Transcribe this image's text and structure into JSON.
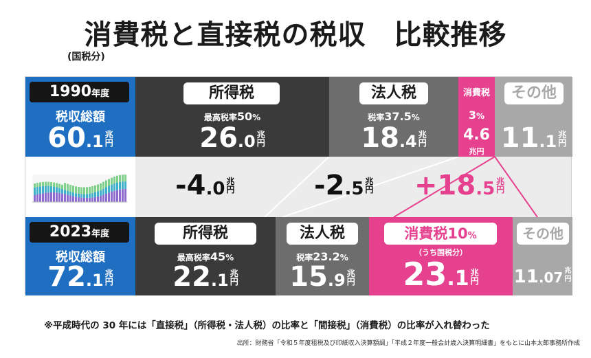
{
  "title": "消費税と直接税の税収　比較推移",
  "subtitle": "(国税分)",
  "unit": "兆円",
  "row1990": {
    "year": "1990",
    "year_suffix": "年度",
    "total_label": "税収総額",
    "total_int": "60",
    "total_dec": ".1",
    "income": {
      "label": "所得税",
      "rate_label": "最高税率",
      "rate": "50",
      "rate_unit": "%",
      "v_int": "26",
      "v_dec": ".0"
    },
    "corp": {
      "label": "法人税",
      "rate_label": "税率",
      "rate": "37.5",
      "rate_unit": "%",
      "v_int": "18",
      "v_dec": ".4"
    },
    "consumption": {
      "label": "消費税",
      "rate": "3",
      "rate_unit": "%",
      "value": "4.6"
    },
    "other": {
      "label": "その他",
      "v_int": "11",
      "v_dec": ".1"
    }
  },
  "changes": {
    "income": {
      "int": "-4",
      "dec": ".0"
    },
    "corp": {
      "int": "-2",
      "dec": ".5"
    },
    "consumption": {
      "int": "+18",
      "dec": ".5"
    }
  },
  "row2023": {
    "year": "2023",
    "year_suffix": "年度",
    "total_label": "税収総額",
    "total_int": "72",
    "total_dec": ".1",
    "income": {
      "label": "所得税",
      "rate_label": "最高税率",
      "rate": "45",
      "rate_unit": "%",
      "v_int": "22",
      "v_dec": ".1"
    },
    "corp": {
      "label": "法人税",
      "rate_label": "税率",
      "rate": "23.2",
      "rate_unit": "%",
      "v_int": "15",
      "v_dec": ".9"
    },
    "consumption": {
      "label": "消費税",
      "rate": "10",
      "rate_unit": "%",
      "note": "（うち国税分）",
      "v_int": "23",
      "v_dec": ".1"
    },
    "other": {
      "label": "その他",
      "v_int": "11",
      "v_dec": ".07"
    }
  },
  "footnote": "※平成時代の 30 年には「直接税」（所得税・法人税）の比率と「間接税」（消費税）の比率が入れ替わった",
  "source": "出所：財務省「令和５年度租税及び印紙収入決算額調」「平成２年度一般会計歳入決算明細書」をもとに山本太郎事務所作成",
  "colors": {
    "blue": "#1e6fc2",
    "dark": "#3a3a3a",
    "gray": "#6d6d6d",
    "pink": "#e6418f",
    "lightgray": "#a8a8a8",
    "mid": "#ececec"
  },
  "chart_data": {
    "type": "table",
    "title": "消費税と直接税の税収　比較推移",
    "subtitle": "(国税分)",
    "unit": "兆円",
    "columns": [
      "税収総額",
      "所得税",
      "法人税",
      "消費税",
      "その他"
    ],
    "rows": [
      {
        "year": "1990",
        "values": [
          60.1,
          26.0,
          18.4,
          4.6,
          11.1
        ],
        "rates": {
          "所得税": "最高税率 50%",
          "法人税": "税率 37.5%",
          "消費税": "3%"
        }
      },
      {
        "year": "2023",
        "values": [
          72.1,
          22.1,
          15.9,
          23.1,
          11.07
        ],
        "rates": {
          "所得税": "最高税率 45%",
          "法人税": "税率 23.2%",
          "消費税": "10%"
        }
      }
    ],
    "changes": {
      "所得税": -4.0,
      "法人税": -2.5,
      "消費税": 18.5
    }
  }
}
